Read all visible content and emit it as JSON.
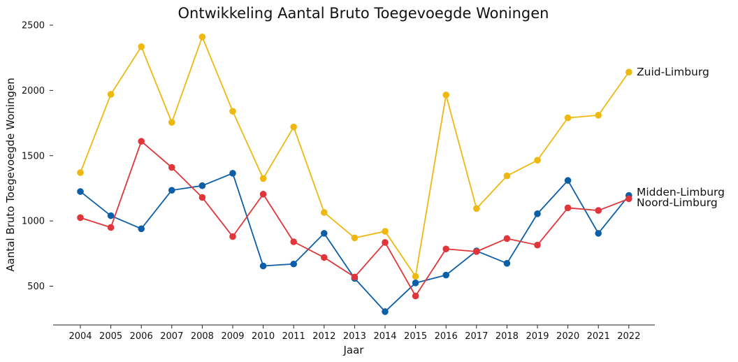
{
  "chart_data": {
    "type": "line",
    "title": "Ontwikkeling Aantal Bruto Toegevoegde Woningen",
    "xlabel": "Jaar",
    "ylabel": "Aantal Bruto Toegevoegde Woningen",
    "x": [
      "2004",
      "2005",
      "2006",
      "2007",
      "2008",
      "2009",
      "2010",
      "2011",
      "2012",
      "2013",
      "2014",
      "2015",
      "2016",
      "2017",
      "2018",
      "2019",
      "2020",
      "2021",
      "2022"
    ],
    "yticks": [
      500,
      1000,
      1500,
      2000,
      2500
    ],
    "ylim": [
      220,
      2550
    ],
    "grid": false,
    "legend": "end-of-line labels",
    "series": [
      {
        "name": "Zuid-Limburg",
        "color": "#efb810",
        "values": [
          1370,
          1970,
          2335,
          1755,
          2410,
          1840,
          1325,
          1720,
          1065,
          870,
          920,
          575,
          1965,
          1095,
          1345,
          1465,
          1790,
          1810,
          2140
        ]
      },
      {
        "name": "Midden-Limburg",
        "color": "#0c5ea6",
        "values": [
          1225,
          1040,
          940,
          1235,
          1270,
          1365,
          655,
          670,
          905,
          560,
          305,
          525,
          585,
          770,
          675,
          1055,
          1310,
          905,
          1195
        ]
      },
      {
        "name": "Noord-Limburg",
        "color": "#e0353a",
        "values": [
          1025,
          950,
          1610,
          1410,
          1180,
          880,
          1205,
          840,
          720,
          570,
          835,
          425,
          785,
          765,
          865,
          815,
          1100,
          1080,
          1170
        ]
      }
    ]
  }
}
